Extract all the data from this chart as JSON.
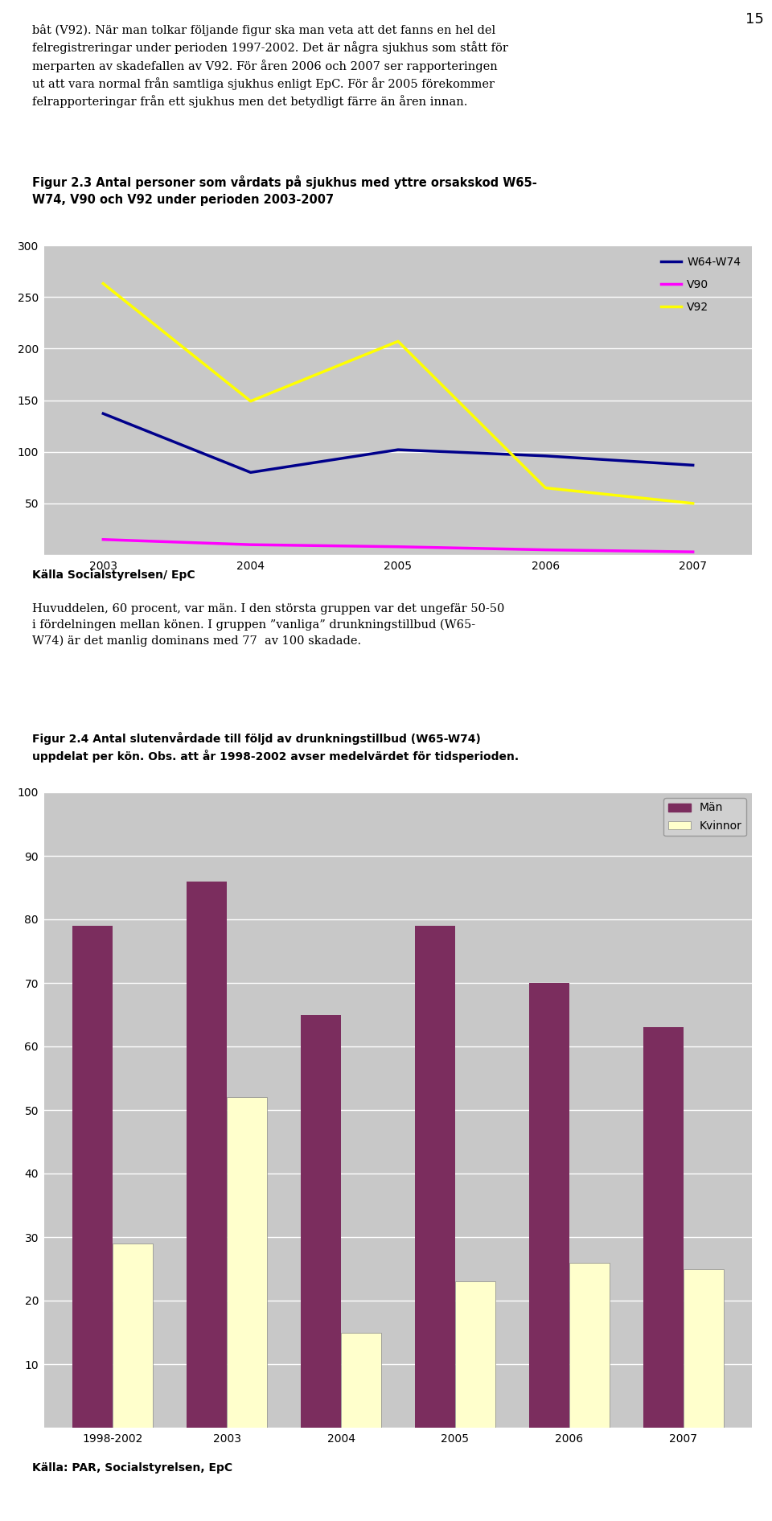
{
  "fig_width": 9.6,
  "fig_height": 18.91,
  "page_bg": "#ffffff",
  "text_above_chart1": [
    "bât (V92). När man tolkar följande figur ska man veta att det fanns en hel del",
    "felregistreringar under perioden 1997-2002. Det är några sjukhus som stått för",
    "merparten av skadefallen av V92. För åren 2006 och 2007 ser rapporteringen",
    "ut att vara normal från samtliga sjukhus enligt EpC. För år 2005 förekommer",
    "felrapporteringar från ett sjukhus men det betydligt färre än åren innan."
  ],
  "chart1_title": "Figur 2.3 Antal personer som vårdats på sjukhus med yttre orsakskod W65-\nW74, V90 och V92 under perioden 2003-2007",
  "chart1_ylim": [
    0,
    300
  ],
  "chart1_yticks": [
    0,
    50,
    100,
    150,
    200,
    250,
    300
  ],
  "chart1_years": [
    2003,
    2004,
    2005,
    2006,
    2007
  ],
  "chart1_W6474": [
    137,
    80,
    102,
    96,
    87
  ],
  "chart1_V90": [
    15,
    10,
    8,
    5,
    3
  ],
  "chart1_V92": [
    263,
    149,
    207,
    65,
    50
  ],
  "chart1_colors": {
    "W6474": "#00008B",
    "V90": "#FF00FF",
    "V92": "#FFFF00"
  },
  "chart1_bg": "#C8C8C8",
  "chart1_source": "Källa Socialstyrelsen/ EpC",
  "text_between": [
    "Huvuddelen, 60 procent, var män. I den största gruppen var det ungefär 50-50",
    "i fördelningen mellan könen. I gruppen ”vanliga” drunkningstillbud (W65-",
    "W74) är det manlig dominans med 77  av 100 skadade."
  ],
  "chart2_title": "Figur 2.4 Antal slutenvårdade till följd av drunkningstillbud (W65-W74)\nuppdelat per kön. Obs. att år 1998-2002 avser medelvärdet för tidsperioden.",
  "chart2_categories": [
    "1998-2002",
    "2003",
    "2004",
    "2005",
    "2006",
    "2007"
  ],
  "chart2_man": [
    79,
    86,
    65,
    79,
    70,
    63
  ],
  "chart2_kvinnor": [
    29,
    52,
    15,
    23,
    26,
    25
  ],
  "chart2_man_color": "#7B2D5E",
  "chart2_kvinnor_color": "#FFFFCC",
  "chart2_bg": "#C8C8C8",
  "chart2_ylim": [
    0,
    100
  ],
  "chart2_yticks": [
    0,
    10,
    20,
    30,
    40,
    50,
    60,
    70,
    80,
    90,
    100
  ],
  "chart2_source": "Källa: PAR, Socialstyrelsen, EpC",
  "pagenum": "15"
}
